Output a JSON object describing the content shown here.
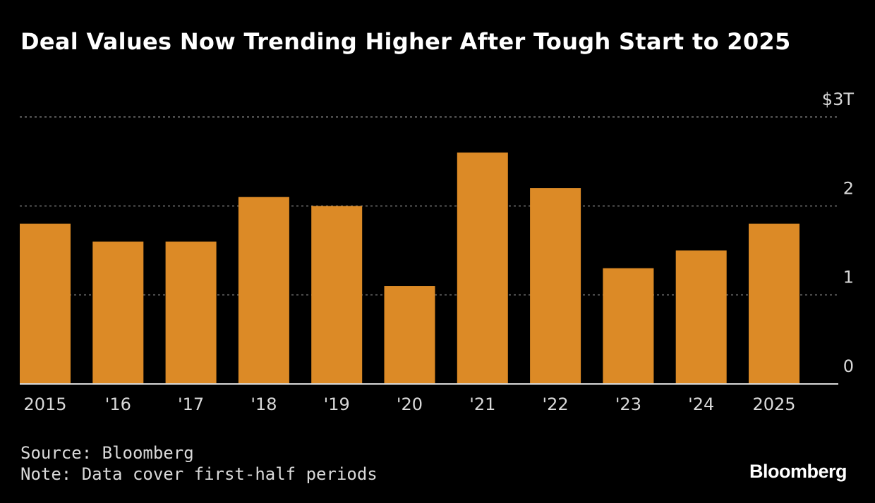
{
  "chart_data": {
    "type": "bar",
    "title": "Deal Values Now Trending Higher After Tough Start to 2025",
    "categories": [
      "2015",
      "'16",
      "'17",
      "'18",
      "'19",
      "'20",
      "'21",
      "'22",
      "'23",
      "'24",
      "2025"
    ],
    "values": [
      1.8,
      1.6,
      1.6,
      2.1,
      2.0,
      1.1,
      2.6,
      2.2,
      1.3,
      1.5,
      1.8
    ],
    "ylim": [
      0,
      3
    ],
    "yticks": [
      {
        "value": 0,
        "label": "0"
      },
      {
        "value": 1,
        "label": "1"
      },
      {
        "value": 2,
        "label": "2"
      },
      {
        "value": 3,
        "label": "$3T"
      }
    ],
    "grid": true,
    "bar_color": "#dc8a26"
  },
  "footer": {
    "source": "Source: Bloomberg",
    "note": "Note: Data cover first-half periods"
  },
  "brand": "Bloomberg"
}
